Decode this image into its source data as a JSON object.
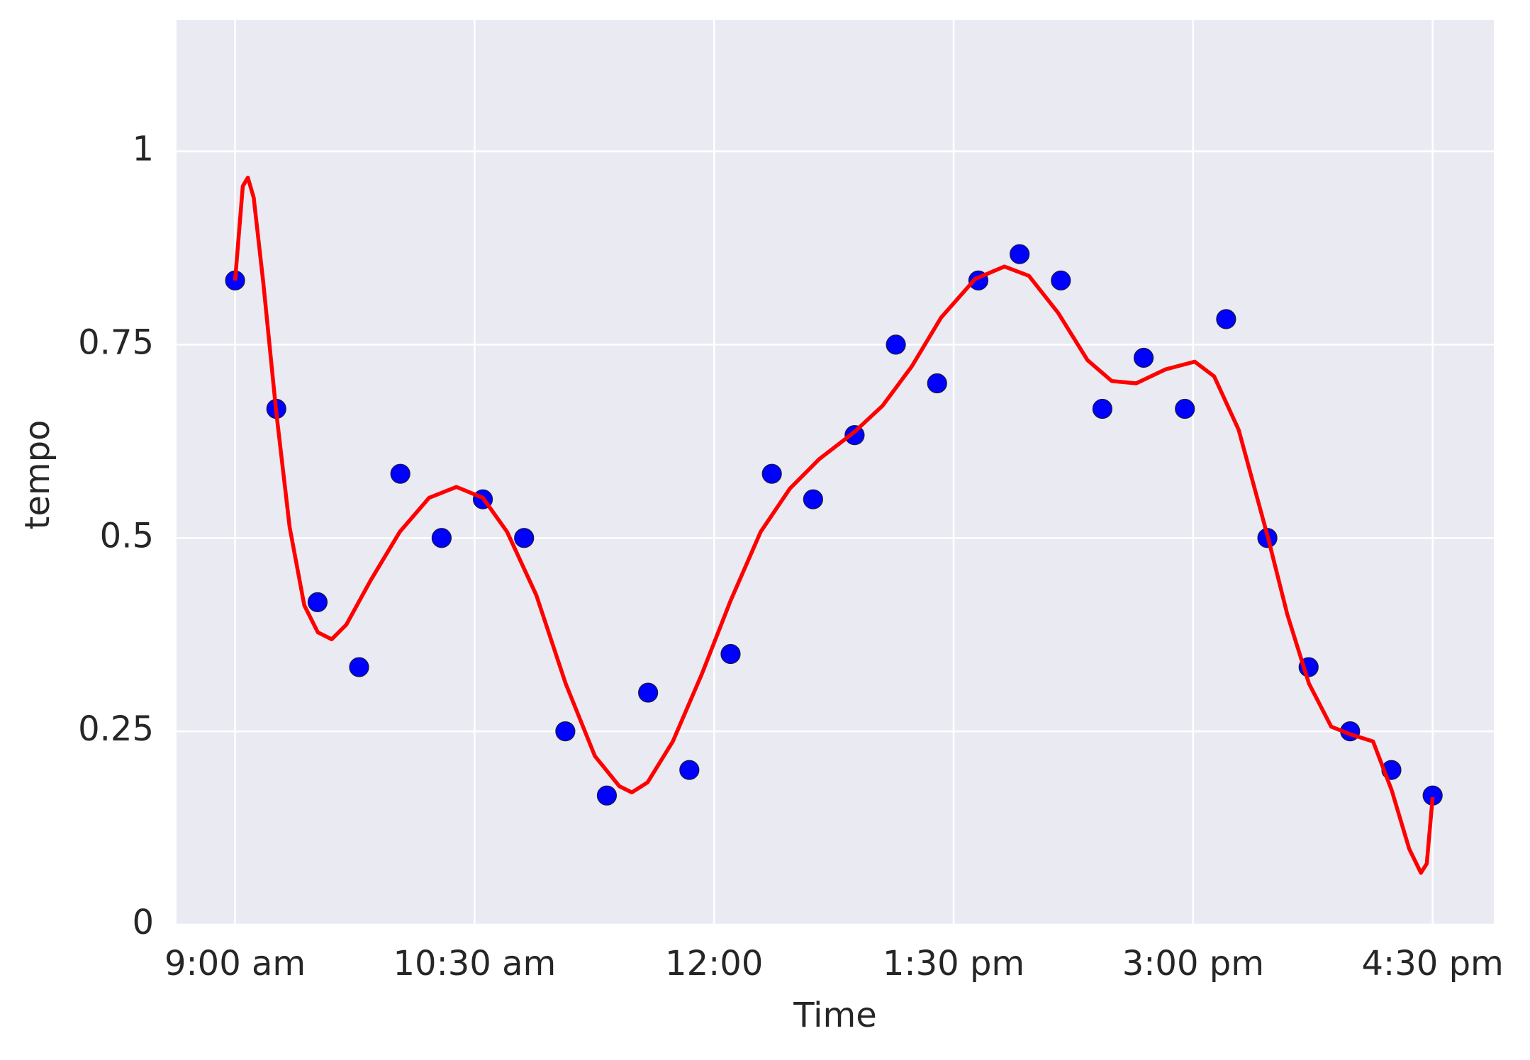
{
  "chart_data": {
    "type": "scatter",
    "xlabel": "Time",
    "ylabel": "tempo",
    "xlim": [
      518,
      1013
    ],
    "ylim": [
      0,
      1.17
    ],
    "xticks": [
      {
        "value": 540,
        "label": "9:00 am"
      },
      {
        "value": 630,
        "label": "10:30 am"
      },
      {
        "value": 720,
        "label": "12:00"
      },
      {
        "value": 810,
        "label": "1:30 pm"
      },
      {
        "value": 900,
        "label": "3:00 pm"
      },
      {
        "value": 990,
        "label": "4:30 pm"
      }
    ],
    "yticks": [
      0,
      0.25,
      0.5,
      0.75,
      1
    ],
    "grid": true,
    "series": [
      {
        "type": "scatter",
        "color": "#0000ff",
        "x": [
          540,
          555.5,
          571,
          586.6,
          602.1,
          617.6,
          633.1,
          648.6,
          664.1,
          679.7,
          695.2,
          710.7,
          726.2,
          741.7,
          757.2,
          772.8,
          788.3,
          803.8,
          819.3,
          834.8,
          850.3,
          865.9,
          881.4,
          896.9,
          912.4,
          927.9,
          943.4,
          959,
          974.5,
          990
        ],
        "values": [
          0.833,
          0.667,
          0.417,
          0.333,
          0.583,
          0.5,
          0.55,
          0.5,
          0.25,
          0.167,
          0.3,
          0.2,
          0.35,
          0.583,
          0.55,
          0.633,
          0.75,
          0.7,
          0.833,
          0.867,
          0.833,
          0.667,
          0.733,
          0.667,
          0.783,
          0.5,
          0.333,
          0.25,
          0.2,
          0.167
        ]
      },
      {
        "type": "line",
        "color": "#ff0000",
        "x": [
          540,
          542.9,
          544.8,
          547,
          550.6,
          555.4,
          560.5,
          566,
          571.1,
          576.3,
          581.8,
          590.9,
          601.9,
          612.9,
          623.2,
          633.1,
          642.2,
          653.2,
          664.2,
          675.2,
          684.4,
          689.1,
          695,
          704.5,
          715.5,
          726.2,
          737.5,
          748.5,
          759.5,
          772.7,
          783.3,
          794.3,
          805.3,
          818.1,
          829.1,
          838.3,
          849.3,
          860.3,
          869.4,
          878.6,
          889.6,
          900.6,
          907.9,
          917.1,
          928.1,
          935.4,
          943.5,
          951.9,
          959.2,
          967.6,
          974.6,
          981.2,
          985.6,
          987.8,
          990
        ],
        "values": [
          0.833,
          0.955,
          0.966,
          0.94,
          0.83,
          0.665,
          0.514,
          0.413,
          0.378,
          0.369,
          0.388,
          0.445,
          0.508,
          0.552,
          0.566,
          0.552,
          0.508,
          0.426,
          0.312,
          0.218,
          0.179,
          0.171,
          0.184,
          0.237,
          0.325,
          0.419,
          0.508,
          0.564,
          0.602,
          0.637,
          0.671,
          0.722,
          0.785,
          0.835,
          0.851,
          0.839,
          0.791,
          0.73,
          0.703,
          0.7,
          0.718,
          0.728,
          0.709,
          0.64,
          0.501,
          0.401,
          0.312,
          0.256,
          0.246,
          0.237,
          0.174,
          0.098,
          0.067,
          0.079,
          0.165
        ]
      }
    ]
  }
}
